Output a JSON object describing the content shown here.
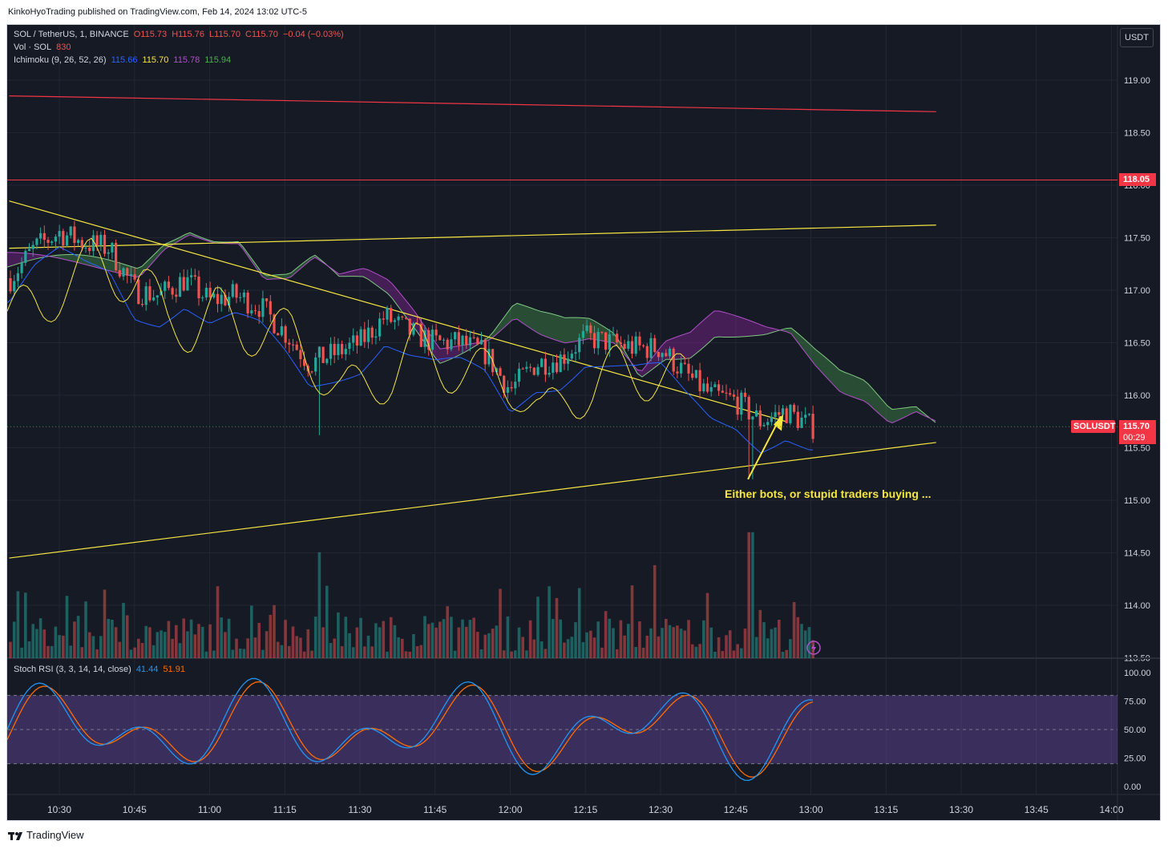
{
  "header": {
    "published": "KinkoHyoTrading published on TradingView.com, Feb 14, 2024 13:02 UTC-5"
  },
  "legend": {
    "symbol": "SOL / TetherUS, 1, BINANCE",
    "open": "O115.73",
    "high": "H115.76",
    "low": "L115.70",
    "close": "C115.70",
    "change": "−0.04 (−0.03%)",
    "vol_label": "Vol · SOL",
    "vol_value": "830",
    "ichimoku_label": "Ichimoku (9, 26, 52, 26)",
    "ichi_v1": "115.66",
    "ichi_v2": "115.70",
    "ichi_v3": "115.78",
    "ichi_v4": "115.94",
    "stoch_label": "Stoch RSI (3, 3, 14, 14, close)",
    "stoch_k": "41.44",
    "stoch_d": "51.91"
  },
  "currency_button": "USDT",
  "price_axis": {
    "ticks": [
      "119.00",
      "118.50",
      "118.00",
      "117.50",
      "117.00",
      "116.50",
      "116.00",
      "115.50",
      "115.00",
      "114.50",
      "114.00",
      "113.50"
    ],
    "tag_red_level": "118.05",
    "symbol_tag": "SOLUSDT",
    "last_price": "115.70",
    "countdown": "00:29"
  },
  "stoch_axis": {
    "ticks": [
      "100.00",
      "75.00",
      "50.00",
      "25.00",
      "0.00"
    ]
  },
  "time_axis": {
    "ticks": [
      "10:30",
      "10:45",
      "11:00",
      "11:15",
      "11:30",
      "11:45",
      "12:00",
      "12:15",
      "12:30",
      "12:45",
      "13:00",
      "13:15",
      "13:30",
      "13:45",
      "14:00"
    ]
  },
  "annotation": "Either bots, or stupid traders buying ...",
  "brand": "TradingView",
  "colors": {
    "up": "#26a69a",
    "down": "#ef5350",
    "trend": "#f5e642",
    "hline": "#f23645",
    "kijun": "#2962ff",
    "tenkan": "#f5e642",
    "stoch_k": "#2196f3",
    "stoch_d": "#ff6d00",
    "band": "#7e57c2"
  },
  "chart_data": {
    "type": "candlestick",
    "symbol": "SOL / TetherUS",
    "interval": "1",
    "x_range": [
      "10:20",
      "14:05"
    ],
    "y_range": [
      113.5,
      119.2
    ],
    "series": [
      {
        "name": "price",
        "close_path": [
          [
            "10:20",
            117.1
          ],
          [
            "10:25",
            117.4
          ],
          [
            "10:30",
            117.55
          ],
          [
            "10:35",
            117.45
          ],
          [
            "10:40",
            117.4
          ],
          [
            "10:45",
            117.0
          ],
          [
            "10:50",
            116.95
          ],
          [
            "10:55",
            117.1
          ],
          [
            "11:00",
            116.9
          ],
          [
            "11:05",
            116.95
          ],
          [
            "11:10",
            116.85
          ],
          [
            "11:15",
            116.6
          ],
          [
            "11:20",
            116.3
          ],
          [
            "11:25",
            116.4
          ],
          [
            "11:30",
            116.5
          ],
          [
            "11:35",
            116.75
          ],
          [
            "11:40",
            116.6
          ],
          [
            "11:45",
            116.5
          ],
          [
            "11:50",
            116.5
          ],
          [
            "11:55",
            116.4
          ],
          [
            "12:00",
            116.05
          ],
          [
            "12:05",
            116.3
          ],
          [
            "12:10",
            116.35
          ],
          [
            "12:15",
            116.55
          ],
          [
            "12:20",
            116.5
          ],
          [
            "12:25",
            116.45
          ],
          [
            "12:30",
            116.45
          ],
          [
            "12:35",
            116.2
          ],
          [
            "12:40",
            116.0
          ],
          [
            "12:45",
            115.95
          ],
          [
            "12:50",
            115.75
          ],
          [
            "12:55",
            115.85
          ],
          [
            "13:00",
            115.7
          ]
        ]
      },
      {
        "name": "volume",
        "spikes": [
          [
            "11:22",
            740
          ],
          [
            "12:29",
            650
          ],
          [
            "12:48",
            880
          ]
        ]
      }
    ],
    "horizontal_lines": [
      118.05
    ],
    "trend_lines": [
      {
        "from": [
          "10:20",
          118.85
        ],
        "to": [
          "13:25",
          118.7
        ]
      },
      {
        "from": [
          "10:20",
          117.85
        ],
        "to": [
          "12:55",
          115.75
        ]
      },
      {
        "from": [
          "10:20",
          117.4
        ],
        "to": [
          "13:25",
          117.62
        ]
      },
      {
        "from": [
          "10:20",
          114.45
        ],
        "to": [
          "13:25",
          115.55
        ]
      }
    ],
    "stoch_rsi": {
      "k": 41.44,
      "d": 51.91,
      "bands": [
        80,
        20
      ]
    }
  }
}
